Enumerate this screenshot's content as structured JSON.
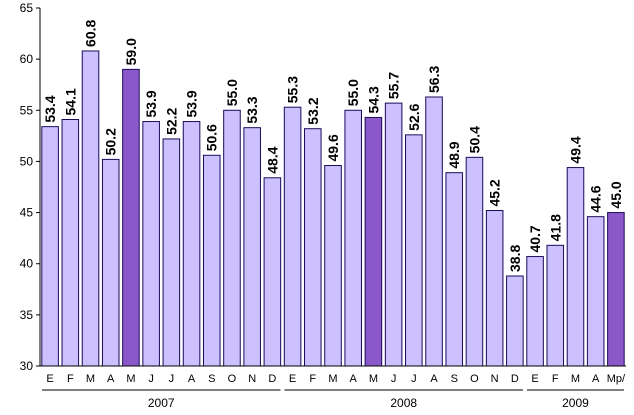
{
  "chart_data": {
    "type": "bar",
    "ylim": [
      30,
      65
    ],
    "yticks": [
      30,
      35,
      40,
      45,
      50,
      55,
      60,
      65
    ],
    "grid": false,
    "categories": [
      "E",
      "F",
      "M",
      "A",
      "M",
      "J",
      "J",
      "A",
      "S",
      "O",
      "N",
      "D",
      "E",
      "F",
      "M",
      "A",
      "M",
      "J",
      "J",
      "A",
      "S",
      "O",
      "N",
      "D",
      "E",
      "F",
      "M",
      "A",
      "Mp/"
    ],
    "values": [
      53.4,
      54.1,
      60.8,
      50.2,
      59.0,
      53.9,
      52.2,
      53.9,
      50.6,
      55.0,
      53.3,
      48.4,
      55.3,
      53.2,
      49.6,
      55.0,
      54.3,
      55.7,
      52.6,
      56.3,
      48.9,
      50.4,
      45.2,
      38.8,
      40.7,
      41.8,
      49.4,
      44.6,
      45.0
    ],
    "data_labels": [
      "53.4",
      "54.1",
      "60.8",
      "50.2",
      "59.0",
      "53.9",
      "52.2",
      "53.9",
      "50.6",
      "55.0",
      "53.3",
      "48.4",
      "55.3",
      "53.2",
      "49.6",
      "55.0",
      "54.3",
      "55.7",
      "52.6",
      "56.3",
      "48.9",
      "50.4",
      "45.2",
      "38.8",
      "40.7",
      "41.8",
      "49.4",
      "44.6",
      "45.0"
    ],
    "highlighted_indices": [
      4,
      16,
      28
    ],
    "year_groups": [
      {
        "label": "2007",
        "start": 0,
        "end": 11
      },
      {
        "label": "2008",
        "start": 12,
        "end": 23
      },
      {
        "label": "2009",
        "start": 24,
        "end": 28
      }
    ],
    "colors": {
      "bar_fill": "#ccc0ff",
      "bar_fill_highlight": "#8a58c8",
      "bar_stroke": "#1a0a5a",
      "axis": "#000000"
    }
  }
}
